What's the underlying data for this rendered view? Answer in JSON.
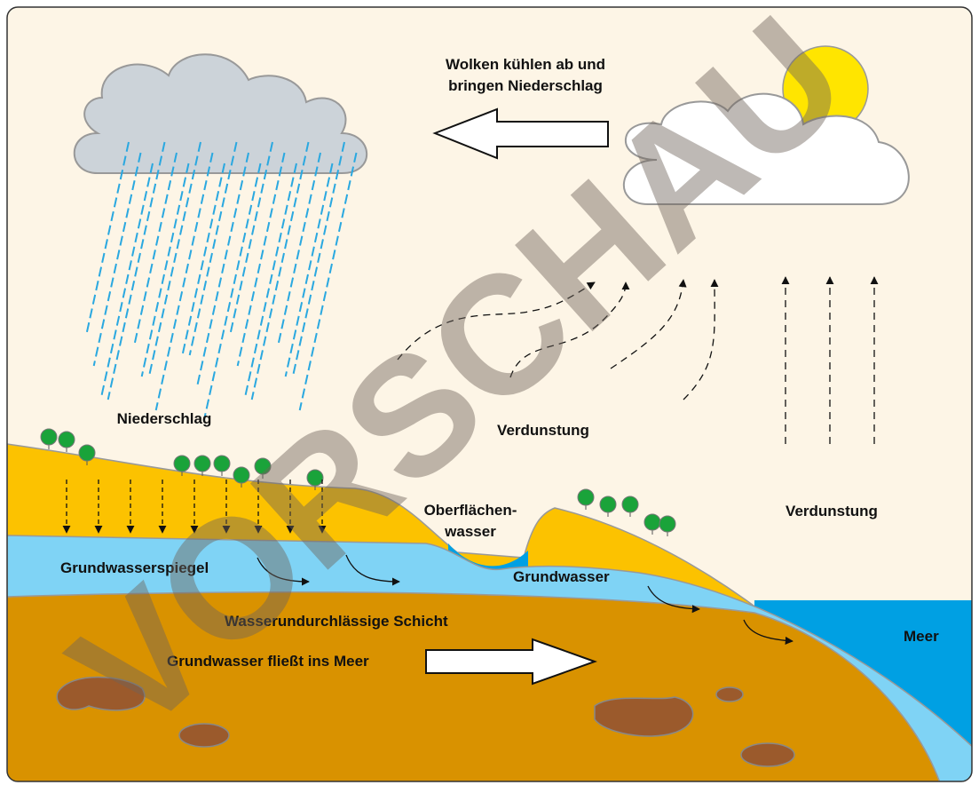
{
  "labels": {
    "clouds": [
      "Wolken kühlen ab und",
      "bringen Niederschlag"
    ],
    "precipitation": "Niederschlag",
    "evaporation_land": "Verdunstung",
    "evaporation_sea": "Verdunstung",
    "surface_water": [
      "Oberflächen-",
      "wasser"
    ],
    "water_table": "Grundwasserspiegel",
    "groundwater": "Grundwasser",
    "impermeable_layer": "Wasserundurchlässige Schicht",
    "groundwater_flow": "Grundwasser fließt ins Meer",
    "sea": "Meer"
  },
  "watermark": "VORSCHAU"
}
